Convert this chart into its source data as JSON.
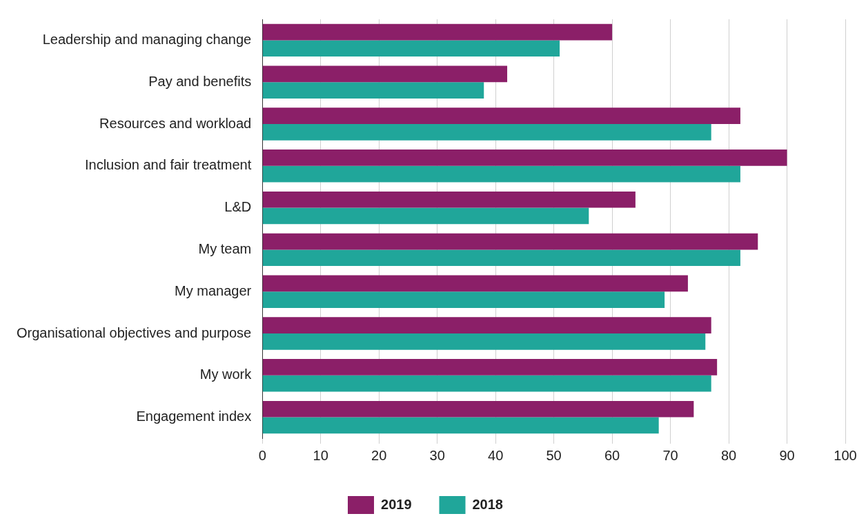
{
  "chart_data": {
    "type": "bar",
    "orientation": "horizontal",
    "categories": [
      "Leadership and managing change",
      "Pay and benefits",
      "Resources and workload",
      "Inclusion and fair treatment",
      "L&D",
      "My team",
      "My manager",
      "Organisational objectives and purpose",
      "My work",
      "Engagement index"
    ],
    "series": [
      {
        "name": "2019",
        "color": "#8b1f68",
        "values": [
          60,
          42,
          82,
          90,
          64,
          85,
          73,
          77,
          78,
          74
        ]
      },
      {
        "name": "2018",
        "color": "#20a69a",
        "values": [
          51,
          38,
          77,
          82,
          56,
          82,
          69,
          76,
          77,
          68
        ]
      }
    ],
    "xlim": [
      0,
      100
    ],
    "xticks": [
      0,
      10,
      20,
      30,
      40,
      50,
      60,
      70,
      80,
      90,
      100
    ],
    "grid": "x",
    "legend": "bottom"
  }
}
